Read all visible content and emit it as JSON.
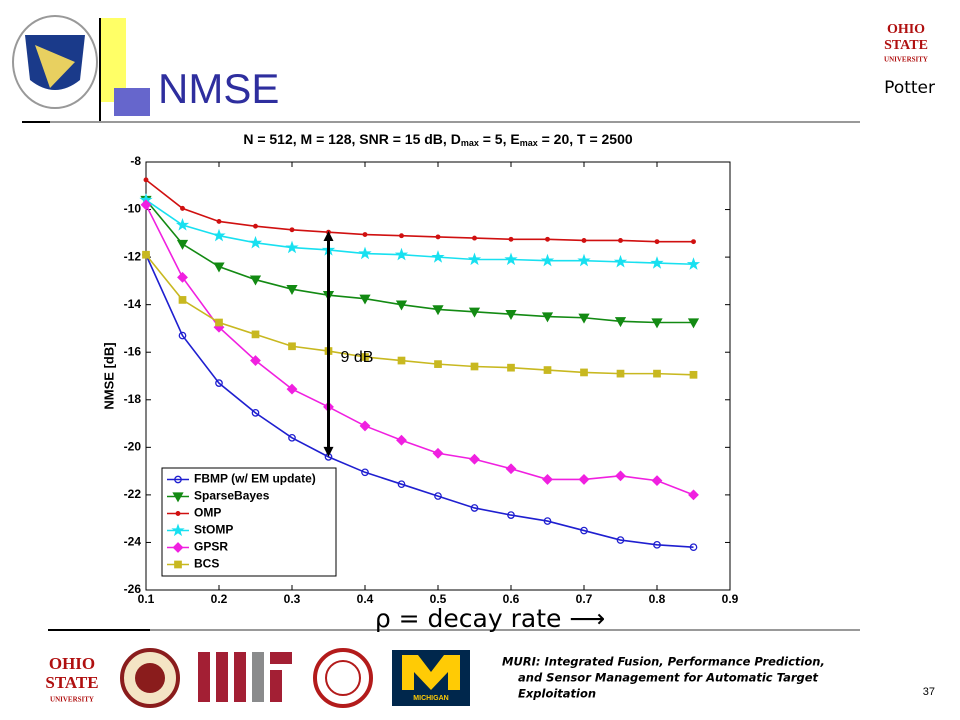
{
  "slide": {
    "heading": "NMSE",
    "author": "Potter",
    "page": "37",
    "footer": [
      "MURI: Integrated Fusion, Performance Prediction,",
      "and Sensor Management for Automatic Target",
      "Exploitation"
    ],
    "logo_osu": [
      "OHIO",
      "STATE",
      "UNIVERSITY"
    ],
    "logo_michigan": "MICHIGAN"
  },
  "chart_data": {
    "type": "line",
    "title": [
      "N = 512, M = 128, SNR = 15 dB, D",
      "max",
      " = 5, E",
      "max",
      " = 20, T = 2500"
    ],
    "xlabel": "ρ =  decay rate ⟶",
    "ylabel": "NMSE [dB]",
    "x": [
      0.1,
      0.15,
      0.2,
      0.25,
      0.3,
      0.35,
      0.4,
      0.45,
      0.5,
      0.55,
      0.6,
      0.65,
      0.7,
      0.75,
      0.8,
      0.85
    ],
    "xlim": [
      0.1,
      0.9
    ],
    "xticks": [
      0.1,
      0.2,
      0.3,
      0.4,
      0.5,
      0.6,
      0.7,
      0.8,
      0.9
    ],
    "ylim": [
      -26,
      -8
    ],
    "yticks": [
      -26,
      -24,
      -22,
      -20,
      -18,
      -16,
      -14,
      -12,
      -10,
      -8
    ],
    "legend": "lower left",
    "series": [
      {
        "name": "FBMP (w/ EM update)",
        "color": "#1f1fd0",
        "marker": "o",
        "values": [
          -11.9,
          -15.3,
          -17.3,
          -18.55,
          -19.6,
          -20.4,
          -21.05,
          -21.55,
          -22.05,
          -22.55,
          -22.85,
          -23.1,
          -23.5,
          -23.9,
          -24.1,
          -24.2
        ]
      },
      {
        "name": "SparseBayes",
        "color": "#138a13",
        "marker": "v",
        "values": [
          -9.6,
          -11.45,
          -12.4,
          -12.95,
          -13.35,
          -13.6,
          -13.75,
          -14.0,
          -14.2,
          -14.3,
          -14.4,
          -14.5,
          -14.55,
          -14.7,
          -14.75,
          -14.75
        ]
      },
      {
        "name": "OMP",
        "color": "#d01010",
        "marker": ".",
        "values": [
          -8.75,
          -9.95,
          -10.5,
          -10.7,
          -10.85,
          -10.95,
          -11.05,
          -11.1,
          -11.15,
          -11.2,
          -11.25,
          -11.25,
          -11.3,
          -11.3,
          -11.35,
          -11.35
        ]
      },
      {
        "name": "StOMP",
        "color": "#18e0f0",
        "marker": "*",
        "values": [
          -9.6,
          -10.65,
          -11.1,
          -11.4,
          -11.6,
          -11.7,
          -11.85,
          -11.9,
          -12.0,
          -12.1,
          -12.1,
          -12.15,
          -12.15,
          -12.2,
          -12.25,
          -12.3
        ]
      },
      {
        "name": "GPSR",
        "color": "#f020e0",
        "marker": "D",
        "values": [
          -9.8,
          -12.85,
          -14.95,
          -16.35,
          -17.55,
          -18.3,
          -19.1,
          -19.7,
          -20.25,
          -20.5,
          -20.9,
          -21.35,
          -21.35,
          -21.2,
          -21.4,
          -22.0
        ]
      },
      {
        "name": "BCS",
        "color": "#c8b820",
        "marker": "s",
        "values": [
          -11.9,
          -13.8,
          -14.75,
          -15.25,
          -15.75,
          -15.95,
          -16.2,
          -16.35,
          -16.5,
          -16.6,
          -16.65,
          -16.75,
          -16.85,
          -16.9,
          -16.9,
          -16.95
        ]
      }
    ],
    "annotation": {
      "text": "9 dB",
      "x": 0.35,
      "y": [
        -10.9,
        -20.4
      ]
    }
  }
}
